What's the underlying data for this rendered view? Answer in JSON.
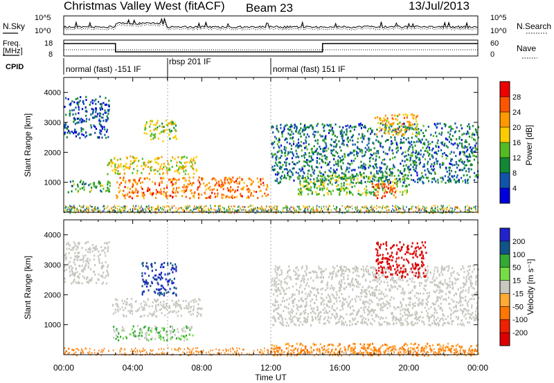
{
  "header": {
    "title": "Christmas Valley West (fitACF)",
    "beam": "Beam 23",
    "date": "13/Jul/2013"
  },
  "noise_panel": {
    "left_label": "N.Sky",
    "right_label": "N.Search",
    "left_ticks": [
      "10^5",
      "10^0"
    ],
    "right_ticks": [
      "10^5",
      "10^0"
    ]
  },
  "freq_panel": {
    "left_label_1": "Freq.",
    "left_label_2": "[MHz]",
    "right_label": "Nave",
    "left_ticks": [
      "18",
      "8"
    ],
    "right_ticks": [
      "60",
      "0"
    ]
  },
  "cpid": {
    "label": "CPID",
    "segments": [
      {
        "name": "normal (fast) -151 IF",
        "start_hour": 0,
        "end_hour": 6
      },
      {
        "name": "rbsp 201 IF",
        "start_hour": 6,
        "end_hour": 12
      },
      {
        "name": "normal (fast) 151 IF",
        "start_hour": 12,
        "end_hour": 24
      }
    ]
  },
  "axes": {
    "ylabel": "Slant Range [km]",
    "xlabel": "Time UT",
    "y_ticks": [
      "1000",
      "2000",
      "3000",
      "4000"
    ],
    "x_ticks": [
      "00:00",
      "04:00",
      "08:00",
      "12:00",
      "16:00",
      "20:00",
      "00:00"
    ]
  },
  "power_colorbar": {
    "label": "Power [dB]",
    "ticks": [
      "28",
      "24",
      "20",
      "16",
      "12",
      "8",
      "4"
    ],
    "colors": [
      "#ee0000",
      "#ff5500",
      "#ff9900",
      "#ffcc00",
      "#55bb22",
      "#118833",
      "#1155aa",
      "#0000dd"
    ]
  },
  "velocity_colorbar": {
    "label": "Velocity [m s⁻¹]",
    "ticks": [
      "200",
      "100",
      "50",
      "15",
      "-15",
      "-50",
      "-100",
      "-200"
    ],
    "colors": [
      "#2222cc",
      "#115588",
      "#33aa33",
      "#77dd44",
      "#c8c8c0",
      "#ffaa33",
      "#ff7700",
      "#ee2200",
      "#dd0000"
    ]
  },
  "chart_data": {
    "type": "heatmap",
    "x_unit": "hours UT",
    "xlim": [
      0,
      24
    ],
    "ylim": [
      0,
      4500
    ],
    "ground_scatter_color": "#c8c8c0",
    "power_regions": [
      {
        "t0": 0.0,
        "t1": 2.6,
        "r0": 2500,
        "r1": 3900,
        "power_db": 6
      },
      {
        "t0": 0.2,
        "t1": 2.8,
        "r0": 700,
        "r1": 1100,
        "power_db": 12
      },
      {
        "t0": 2.5,
        "t1": 7.8,
        "r0": 1300,
        "r1": 1900,
        "power_db": 18
      },
      {
        "t0": 3.0,
        "t1": 11.8,
        "r0": 500,
        "r1": 1200,
        "power_db": 24
      },
      {
        "t0": 4.8,
        "t1": 5.8,
        "r0": 600,
        "r1": 800,
        "power_db": 28
      },
      {
        "t0": 4.5,
        "t1": 6.5,
        "r0": 2400,
        "r1": 3100,
        "power_db": 16
      },
      {
        "t0": 12.0,
        "t1": 24.0,
        "r0": 1000,
        "r1": 3000,
        "power_db": 8
      },
      {
        "t0": 13.5,
        "t1": 20.0,
        "r0": 600,
        "r1": 1300,
        "power_db": 14
      },
      {
        "t0": 17.8,
        "t1": 19.5,
        "r0": 500,
        "r1": 1000,
        "power_db": 26
      },
      {
        "t0": 18.0,
        "t1": 20.5,
        "r0": 2600,
        "r1": 3300,
        "power_db": 20
      }
    ],
    "velocity_regions": [
      {
        "t0": 0.0,
        "t1": 2.6,
        "r0": 2400,
        "r1": 3800,
        "velocity": 0
      },
      {
        "t0": 2.8,
        "t1": 7.5,
        "r0": 500,
        "r1": 1000,
        "velocity": 30
      },
      {
        "t0": 2.8,
        "t1": 8.0,
        "r0": 1300,
        "r1": 1900,
        "velocity": 0
      },
      {
        "t0": 4.5,
        "t1": 6.5,
        "r0": 2000,
        "r1": 3100,
        "velocity": 150
      },
      {
        "t0": 12.0,
        "t1": 24.0,
        "r0": 0,
        "r1": 400,
        "velocity": -50
      },
      {
        "t0": 12.0,
        "t1": 24.0,
        "r0": 1000,
        "r1": 3000,
        "velocity": 0
      },
      {
        "t0": 18.0,
        "t1": 21.0,
        "r0": 2600,
        "r1": 3800,
        "velocity": -200
      }
    ]
  }
}
